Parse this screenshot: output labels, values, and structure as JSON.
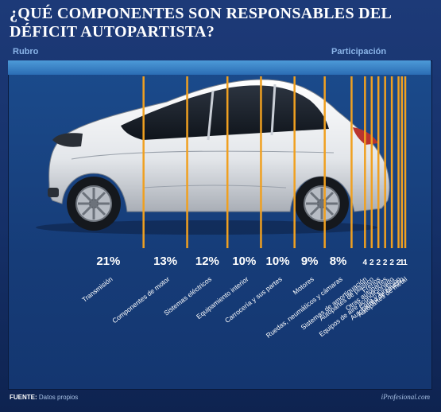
{
  "title": "¿QUÉ COMPONENTES SON RESPONSABLES DEL DÉFICIT AUTOPARTISTA?",
  "headers": {
    "rubro": "Rubro",
    "participacion": "Participación"
  },
  "footer": {
    "label": "FUENTE:",
    "text": "Datos propios",
    "brand": "iProfesional.com"
  },
  "colors": {
    "line": "#f0a020",
    "background": "#1b4b8c",
    "text": "#ffffff"
  },
  "chart_data": {
    "type": "table",
    "title": "¿QUÉ COMPONENTES SON RESPONSABLES DEL DÉFICIT AUTOPARTISTA?",
    "column_headers": [
      "Rubro",
      "Participación"
    ],
    "categories": [
      "Transmisión",
      "Componentes de motor",
      "Sistemas eléctricos",
      "Equipamiento interior",
      "Carrocería y sus partes",
      "Motores",
      "Ruedas, neumáticos y cámaras",
      "Sistemas de amortiguación",
      "Autopartes de plástico",
      "Frenos",
      "Otras autopartes",
      "Equipos de aire acondicionado",
      "Forja y fundición",
      "Autopartes de caucho",
      "Autopartes de metal"
    ],
    "values": [
      21,
      13,
      12,
      10,
      10,
      9,
      8,
      4,
      2,
      2,
      2,
      2,
      2,
      1,
      1
    ],
    "value_labels": [
      "21%",
      "13%",
      "12%",
      "10%",
      "10%",
      "9%",
      "8%",
      "4",
      "2",
      "2",
      "2",
      "2",
      "2",
      "1",
      "1"
    ],
    "unit": "%"
  }
}
